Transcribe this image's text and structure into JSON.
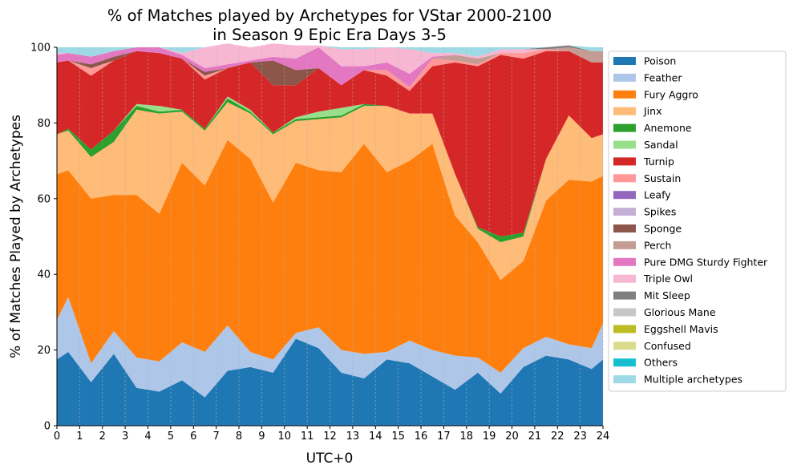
{
  "chart_data": {
    "type": "area",
    "stacked": true,
    "title_line1": "% of Matches played by Archetypes for VStar 2000-2100",
    "title_line2": "in Season 9 Epic Era Days 3-5",
    "xlabel": "UTC+0",
    "ylabel": "% of Matches Played by Archetypes",
    "xlim": [
      0,
      24
    ],
    "ylim": [
      0,
      100
    ],
    "x_ticks": [
      "0",
      "1",
      "2",
      "3",
      "4",
      "5",
      "6",
      "7",
      "8",
      "9",
      "10",
      "11",
      "12",
      "13",
      "14",
      "15",
      "16",
      "17",
      "18",
      "19",
      "20",
      "21",
      "22",
      "23",
      "24"
    ],
    "y_ticks": [
      "0",
      "20",
      "40",
      "60",
      "80",
      "100"
    ],
    "vertical_grid": true,
    "horizontal_grid": false,
    "legend_position": "right-outside",
    "x": [
      0,
      0.5,
      1.5,
      2.5,
      3.5,
      4.5,
      5.5,
      6.5,
      7.5,
      8.5,
      9.5,
      10.5,
      11.5,
      12.5,
      13.5,
      14.5,
      15.5,
      16.5,
      17.5,
      18.5,
      19.5,
      20.5,
      21.5,
      22.5,
      23.5,
      24
    ],
    "series": [
      {
        "name": "Poison",
        "color": "#1f77b4",
        "values": [
          17.5,
          19.5,
          11.5,
          19,
          10,
          9,
          12,
          7.5,
          14.5,
          15.5,
          14,
          23,
          20.5,
          14,
          12.5,
          17.5,
          16.5,
          13,
          9.5,
          14,
          8.5,
          15.5,
          18.5,
          17.5,
          15,
          17.5
        ]
      },
      {
        "name": "Feather",
        "color": "#aec7e8",
        "values": [
          10.5,
          14.5,
          5,
          6,
          8,
          8,
          10,
          12,
          12,
          4,
          3.5,
          1.5,
          5.5,
          6,
          6.5,
          2,
          6,
          7,
          9,
          4,
          5.5,
          5,
          5,
          4,
          5.5,
          9.5
        ]
      },
      {
        "name": "Fury Aggro",
        "color": "#ff7f0e",
        "values": [
          38.5,
          33.5,
          43.5,
          36,
          43,
          39,
          47.5,
          44,
          49,
          51,
          41.5,
          45,
          41.5,
          47,
          55.5,
          47.5,
          47.5,
          54.5,
          37,
          30.5,
          24.5,
          23,
          36,
          43.5,
          44,
          39
        ]
      },
      {
        "name": "Jinx",
        "color": "#ffbb78",
        "values": [
          10.5,
          10.5,
          11,
          14,
          22.5,
          26.5,
          13.5,
          14.5,
          10,
          12,
          18,
          11,
          13.5,
          14.5,
          10,
          17.5,
          12.5,
          8,
          11,
          3.5,
          10,
          6.5,
          11,
          17,
          11.5,
          11
        ]
      },
      {
        "name": "Anemone",
        "color": "#2ca02c",
        "values": [
          0,
          0.5,
          2,
          3,
          1,
          0.5,
          0.5,
          0.5,
          1,
          0.5,
          0.5,
          0.5,
          0.5,
          0.5,
          0.5,
          0,
          0,
          0,
          0,
          0.5,
          1.5,
          1,
          0,
          0,
          0,
          0
        ]
      },
      {
        "name": "Sandal",
        "color": "#98df8a",
        "values": [
          0,
          0,
          0,
          0,
          0.5,
          1.5,
          0,
          0,
          0.5,
          0.5,
          0,
          0.5,
          1.5,
          2,
          0,
          0,
          0,
          0,
          0,
          0,
          0,
          0,
          0,
          0,
          0,
          0
        ]
      },
      {
        "name": "Turnip",
        "color": "#d62728",
        "values": [
          19,
          18,
          19.5,
          18.5,
          14,
          14,
          13.5,
          13,
          7.5,
          12.5,
          12.5,
          8.5,
          11.5,
          6,
          9,
          8,
          6,
          12.5,
          29.5,
          42.5,
          48,
          46,
          28.5,
          17,
          20,
          19
        ]
      },
      {
        "name": "Sustain",
        "color": "#ff9896",
        "values": [
          0,
          0,
          2,
          0,
          0,
          0,
          0,
          1,
          0,
          0,
          0,
          0,
          0,
          0,
          0,
          1.5,
          1,
          2,
          0.5,
          0.5,
          0.5,
          1.5,
          0.5,
          0,
          0,
          0
        ]
      },
      {
        "name": "Leafy",
        "color": "#9467bd",
        "values": [
          0,
          0,
          0,
          0,
          0,
          0,
          0,
          0,
          0,
          0,
          0,
          0,
          0,
          0,
          0,
          0,
          0,
          0,
          0,
          0,
          0,
          0,
          0,
          0,
          0,
          0
        ]
      },
      {
        "name": "Spikes",
        "color": "#c5b0d5",
        "values": [
          0,
          0,
          0,
          0,
          0,
          0,
          0,
          0,
          0,
          0,
          0,
          0,
          0,
          0,
          0,
          0,
          0,
          0,
          0,
          0,
          0,
          0,
          0,
          0,
          0,
          0
        ]
      },
      {
        "name": "Sponge",
        "color": "#8c564b",
        "values": [
          0,
          0,
          1,
          1,
          0,
          0,
          0,
          1,
          0,
          0,
          6.5,
          4,
          0,
          0,
          0,
          0,
          0,
          0,
          0,
          0,
          0,
          0,
          0,
          0,
          0,
          0
        ]
      },
      {
        "name": "Perch",
        "color": "#c49c94",
        "values": [
          0,
          0,
          0,
          0,
          0,
          0,
          0,
          0,
          0,
          0,
          0,
          0,
          0,
          0,
          0,
          0,
          0,
          0,
          1.5,
          1.5,
          0,
          0,
          0,
          1,
          3,
          3
        ]
      },
      {
        "name": "Pure DMG Sturdy Fighter",
        "color": "#e377c2",
        "values": [
          2,
          2,
          2,
          1.5,
          1,
          1.5,
          1,
          1,
          1,
          0.5,
          1,
          3,
          5.5,
          5,
          1,
          2,
          3.5,
          0.5,
          0,
          0,
          0,
          0,
          0,
          0,
          0,
          0
        ]
      },
      {
        "name": "Triple Owl",
        "color": "#f7b6d2",
        "values": [
          0.5,
          0,
          0,
          0,
          0,
          0,
          0.5,
          5.5,
          5.5,
          3.5,
          3.5,
          3.5,
          0.5,
          4.5,
          4.5,
          4,
          6.5,
          1,
          0.5,
          0.5,
          1,
          1,
          0,
          0,
          0,
          0
        ]
      },
      {
        "name": "Mit Sleep",
        "color": "#7f7f7f",
        "values": [
          0,
          0,
          0,
          0,
          0,
          0,
          0,
          0,
          0,
          0,
          0,
          0,
          0,
          0,
          0,
          0,
          0,
          0,
          0,
          0,
          0,
          0,
          0.5,
          0.5,
          0,
          0
        ]
      },
      {
        "name": "Glorious Mane",
        "color": "#c7c7c7",
        "values": [
          0,
          0,
          0,
          0,
          0,
          0,
          0,
          0,
          0,
          0,
          0,
          0,
          0,
          0,
          0,
          0,
          0,
          0,
          0,
          0,
          0,
          0,
          0,
          0,
          0,
          0
        ]
      },
      {
        "name": "Eggshell Mavis",
        "color": "#bcbd22",
        "values": [
          0,
          0,
          0,
          0,
          0,
          0,
          0,
          0,
          0,
          0,
          0,
          0,
          0,
          0,
          0,
          0,
          0,
          0,
          0,
          0,
          0,
          0,
          0,
          0,
          0,
          0
        ]
      },
      {
        "name": "Confused",
        "color": "#dbdb8d",
        "values": [
          0,
          0,
          0,
          0,
          0,
          0,
          0,
          0,
          0,
          0,
          0,
          0,
          0,
          0,
          0,
          0,
          0,
          0,
          0,
          0,
          0,
          0,
          0,
          0,
          0,
          0
        ]
      },
      {
        "name": "Others",
        "color": "#17becf",
        "values": [
          0,
          0,
          0,
          0,
          0,
          0,
          0,
          0,
          0,
          0,
          0,
          0,
          0,
          0,
          0,
          0,
          0,
          0,
          0,
          0,
          0,
          0,
          0,
          0,
          0,
          0
        ]
      },
      {
        "name": "Multiple archetypes",
        "color": "#9edae5",
        "values": [
          1.5,
          1.5,
          2.5,
          1,
          0,
          0,
          1.5,
          0,
          0,
          0,
          0,
          0,
          0,
          0.5,
          0.5,
          0,
          0.5,
          1.5,
          1.5,
          2.5,
          0.5,
          0.5,
          0,
          0,
          1,
          1
        ]
      }
    ]
  }
}
